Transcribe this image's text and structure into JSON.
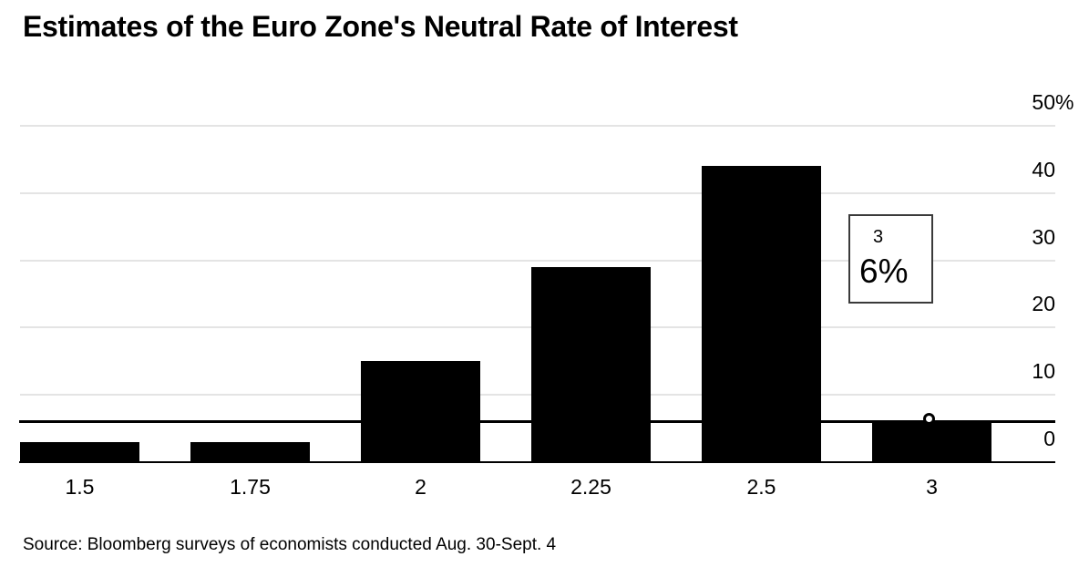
{
  "header": {
    "title": "Estimates of the Euro Zone's Neutral Rate of Interest"
  },
  "footer": {
    "source": "Source: Bloomberg surveys of economists conducted Aug. 30-Sept. 4"
  },
  "tooltip": {
    "category": "3",
    "value": "6%"
  },
  "colors": {
    "background": "#ffffff",
    "bar": "#000000",
    "gridline": "#e4e4e4",
    "axis_line": "#000000",
    "hover_line": "#000000",
    "tooltip_border": "#3a3a3a",
    "marker_fill": "#ffffff",
    "marker_stroke": "#000000"
  },
  "chart_data": {
    "type": "bar",
    "title": "Estimates of the Euro Zone's Neutral Rate of Interest",
    "xlabel": "",
    "ylabel": "",
    "unit": "%",
    "categories": [
      "1.5",
      "1.75",
      "2",
      "2.25",
      "2.5",
      "3"
    ],
    "values": [
      3,
      3,
      15,
      29,
      44,
      6
    ],
    "ylim": [
      0,
      52
    ],
    "yticks": [
      0,
      10,
      20,
      30,
      40,
      50
    ],
    "ytick_labels": [
      "0",
      "10",
      "20",
      "30",
      "40",
      "50%"
    ],
    "ytick_side": "right",
    "grid": "horizontal",
    "legend": "none",
    "bar_color": "#000000",
    "highlight": {
      "category": "3",
      "value": 6,
      "display": "6%",
      "marker": "white-circle-on-bar-top",
      "hover_line_value": 6
    },
    "source": "Source: Bloomberg surveys of economists conducted Aug. 30-Sept. 4"
  }
}
